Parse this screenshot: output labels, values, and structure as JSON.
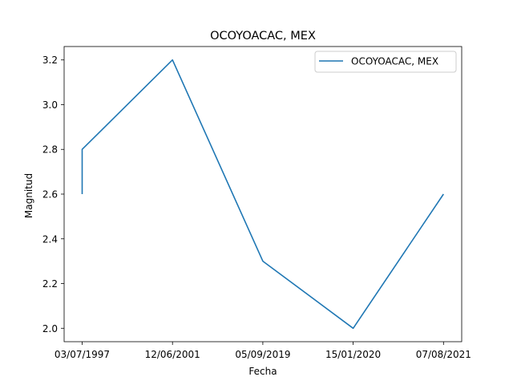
{
  "chart_data": {
    "type": "line",
    "title": "OCOYOACAC, MEX",
    "xlabel": "Fecha",
    "ylabel": "Magnitud",
    "categories": [
      "03/07/1997",
      "12/06/2001",
      "05/09/2019",
      "15/01/2020",
      "07/08/2021"
    ],
    "series": [
      {
        "name": "OCOYOACAC, MEX",
        "color": "#1f77b4",
        "points": [
          {
            "x": "03/07/1997",
            "y": 2.6
          },
          {
            "x": "03/07/1997",
            "y": 2.8
          },
          {
            "x": "12/06/2001",
            "y": 3.2
          },
          {
            "x": "05/09/2019",
            "y": 2.3
          },
          {
            "x": "15/01/2020",
            "y": 2.0
          },
          {
            "x": "07/08/2021",
            "y": 2.6
          }
        ]
      }
    ],
    "yticks": [
      "2.0",
      "2.2",
      "2.4",
      "2.6",
      "2.8",
      "3.0",
      "3.2"
    ],
    "ylim": [
      1.94,
      3.26
    ],
    "grid": false,
    "legend": "top-right"
  }
}
